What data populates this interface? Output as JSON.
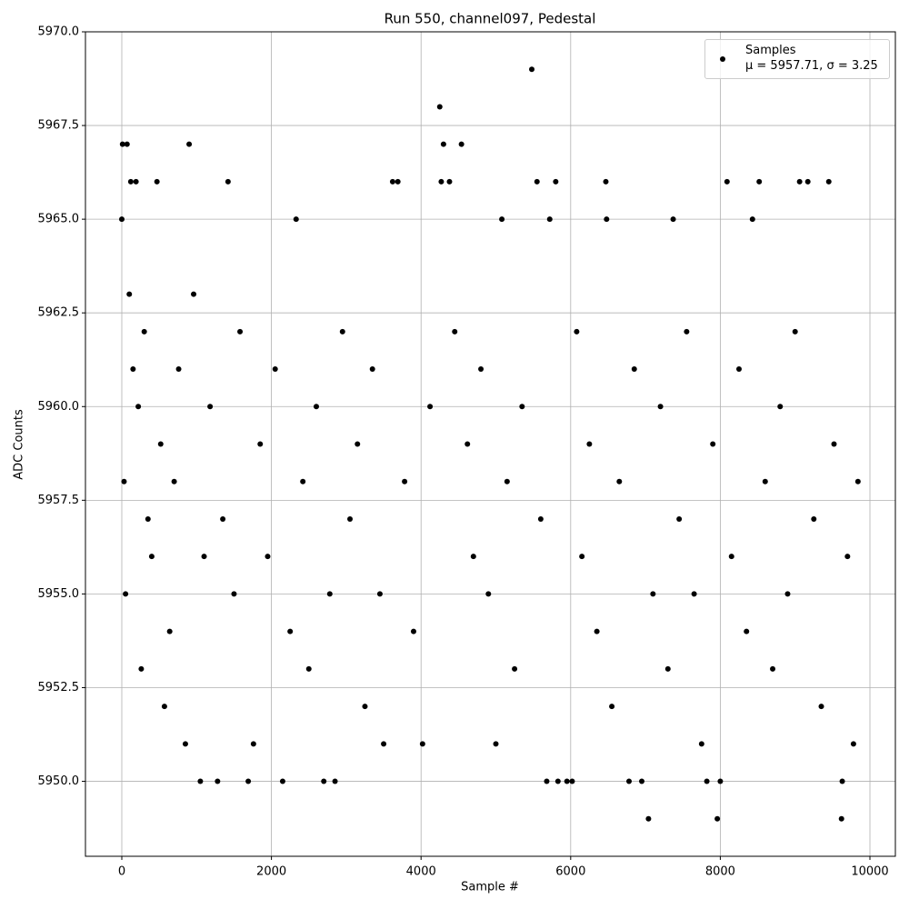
{
  "chart_data": {
    "type": "scatter",
    "title": "Run 550, channel097, Pedestal",
    "x_label": "Sample #",
    "y_label": "ADC Counts",
    "xlim": [
      -486,
      10340
    ],
    "ylim": [
      5948,
      5970
    ],
    "xticks": [
      0,
      2000,
      4000,
      6000,
      8000,
      10000
    ],
    "yticks": [
      {
        "value": 5950,
        "label": "5950.0"
      },
      {
        "value": 5952.5,
        "label": "5952.5"
      },
      {
        "value": 5955,
        "label": "5955.0"
      },
      {
        "value": 5957.5,
        "label": "5957.5"
      },
      {
        "value": 5960,
        "label": "5960.0"
      },
      {
        "value": 5962.5,
        "label": "5962.5"
      },
      {
        "value": 5965,
        "label": "5965.0"
      },
      {
        "value": 5967.5,
        "label": "5967.5"
      },
      {
        "value": 5970,
        "label": "5970.0"
      }
    ],
    "grid": true,
    "legend": "upper right",
    "series": [
      {
        "name": "Samples\nμ = 5957.71, σ = 3.25",
        "color": "#000000",
        "x": [
          0,
          10,
          30,
          50,
          70,
          100,
          120,
          150,
          190,
          220,
          260,
          300,
          350,
          400,
          470,
          520,
          570,
          640,
          700,
          760,
          850,
          900,
          960,
          1050,
          1100,
          1180,
          1280,
          1350,
          1420,
          1500,
          1580,
          1690,
          1760,
          1850,
          1950,
          2050,
          2150,
          2250,
          2330,
          2420,
          2500,
          2600,
          2700,
          2780,
          2850,
          2950,
          3050,
          3150,
          3250,
          3350,
          3450,
          3500,
          3620,
          3690,
          3780,
          3900,
          4020,
          4120,
          4250,
          4270,
          4300,
          4380,
          4450,
          4540,
          4620,
          4700,
          4800,
          4900,
          5000,
          5080,
          5150,
          5250,
          5350,
          5480,
          5550,
          5600,
          5680,
          5720,
          5800,
          5830,
          5950,
          6020,
          6080,
          6150,
          6250,
          6350,
          6470,
          6480,
          6550,
          6650,
          6780,
          6850,
          6950,
          7040,
          7100,
          7200,
          7300,
          7370,
          7450,
          7550,
          7650,
          7750,
          7820,
          7900,
          7960,
          8000,
          8090,
          8150,
          8250,
          8350,
          8430,
          8520,
          8600,
          8700,
          8800,
          8900,
          9000,
          9060,
          9170,
          9250,
          9350,
          9450,
          9520,
          9620,
          9630,
          9700,
          9780,
          9840
        ],
        "values": [
          5965,
          5967,
          5958,
          5955,
          5967,
          5963,
          5966,
          5961,
          5966,
          5960,
          5953,
          5962,
          5957,
          5956,
          5966,
          5959,
          5952,
          5954,
          5958,
          5961,
          5951,
          5967,
          5963,
          5950,
          5956,
          5960,
          5950,
          5957,
          5966,
          5955,
          5962,
          5950,
          5951,
          5959,
          5956,
          5961,
          5950,
          5954,
          5965,
          5958,
          5953,
          5960,
          5950,
          5955,
          5950,
          5962,
          5957,
          5959,
          5952,
          5961,
          5955,
          5951,
          5966,
          5966,
          5958,
          5954,
          5951,
          5960,
          5968,
          5966,
          5967,
          5966,
          5962,
          5967,
          5959,
          5956,
          5961,
          5955,
          5951,
          5965,
          5958,
          5953,
          5960,
          5969,
          5966,
          5957,
          5950,
          5965,
          5966,
          5950,
          5950,
          5950,
          5962,
          5956,
          5959,
          5954,
          5966,
          5965,
          5952,
          5958,
          5950,
          5961,
          5950,
          5949,
          5955,
          5960,
          5953,
          5965,
          5957,
          5962,
          5955,
          5951,
          5950,
          5959,
          5949,
          5950,
          5966,
          5956,
          5961,
          5954,
          5965,
          5966,
          5958,
          5953,
          5960,
          5955,
          5962,
          5966,
          5966,
          5957,
          5952,
          5966,
          5959,
          5949,
          5950,
          5956,
          5951,
          5958
        ]
      }
    ]
  }
}
